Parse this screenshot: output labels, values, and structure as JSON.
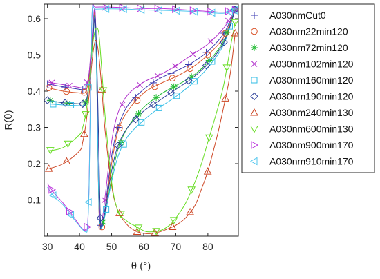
{
  "chart_data": {
    "type": "line",
    "xlabel": "θ (°)",
    "ylabel": "R(θ)",
    "xlim": [
      29,
      89.5
    ],
    "ylim": [
      0,
      0.64
    ],
    "xticks": [
      "30",
      "40",
      "50",
      "60",
      "70",
      "80"
    ],
    "yticks": [
      "0.1",
      "0.2",
      "0.3",
      "0.4",
      "0.5",
      "0.6"
    ],
    "grid": false,
    "legend": "right",
    "series": [
      {
        "name": "A030nmCut0",
        "color": "#3a3ab0",
        "marker": "plus",
        "x": [
          30,
          35,
          40,
          41,
          42,
          43,
          44,
          45,
          46,
          46.5,
          47,
          48,
          50,
          52,
          55,
          60,
          65,
          70,
          75,
          80,
          85,
          88.5
        ],
        "y": [
          0.42,
          0.412,
          0.405,
          0.404,
          0.41,
          0.45,
          0.55,
          0.598,
          0.1,
          0.03,
          0.025,
          0.08,
          0.22,
          0.3,
          0.36,
          0.405,
          0.435,
          0.455,
          0.478,
          0.51,
          0.56,
          0.625
        ]
      },
      {
        "name": "A030nm22min120",
        "color": "#d9552b",
        "marker": "circle",
        "x": [
          30,
          35,
          40,
          41,
          42,
          43,
          44,
          45,
          46,
          46.5,
          47,
          48,
          50,
          52,
          55,
          60,
          65,
          70,
          75,
          80,
          85,
          88.5
        ],
        "y": [
          0.41,
          0.4,
          0.395,
          0.394,
          0.4,
          0.44,
          0.54,
          0.59,
          0.09,
          0.03,
          0.025,
          0.07,
          0.2,
          0.29,
          0.345,
          0.395,
          0.42,
          0.44,
          0.465,
          0.5,
          0.55,
          0.625
        ]
      },
      {
        "name": "A030nm72min120",
        "color": "#22bb33",
        "marker": "asterisk",
        "x": [
          30,
          35,
          40,
          41,
          42,
          43,
          44,
          45,
          46,
          46.5,
          47,
          48,
          50,
          52,
          55,
          60,
          65,
          70,
          75,
          80,
          85,
          88.5
        ],
        "y": [
          0.375,
          0.368,
          0.365,
          0.365,
          0.37,
          0.42,
          0.53,
          0.585,
          0.11,
          0.03,
          0.025,
          0.06,
          0.16,
          0.24,
          0.3,
          0.355,
          0.39,
          0.415,
          0.44,
          0.48,
          0.54,
          0.625
        ]
      },
      {
        "name": "A030nm102min120",
        "color": "#b233cc",
        "marker": "x",
        "x": [
          30,
          35,
          40,
          41,
          42,
          43,
          44,
          45,
          46,
          46.5,
          47,
          48,
          50,
          52,
          55,
          60,
          65,
          70,
          75,
          80,
          85,
          88.5
        ],
        "y": [
          0.425,
          0.418,
          0.41,
          0.408,
          0.41,
          0.45,
          0.56,
          0.6,
          0.13,
          0.04,
          0.04,
          0.11,
          0.26,
          0.34,
          0.39,
          0.425,
          0.445,
          0.47,
          0.5,
          0.53,
          0.575,
          0.625
        ]
      },
      {
        "name": "A030nm160min120",
        "color": "#33bde6",
        "marker": "square",
        "x": [
          30,
          35,
          40,
          41,
          42,
          43,
          44,
          45,
          46,
          46.5,
          47,
          48,
          50,
          52,
          55,
          60,
          65,
          70,
          75,
          80,
          85,
          88.5
        ],
        "y": [
          0.365,
          0.362,
          0.36,
          0.36,
          0.37,
          0.42,
          0.52,
          0.58,
          0.1,
          0.03,
          0.025,
          0.06,
          0.15,
          0.22,
          0.275,
          0.32,
          0.355,
          0.385,
          0.42,
          0.465,
          0.53,
          0.625
        ]
      },
      {
        "name": "A030nm190min120",
        "color": "#2a3d99",
        "marker": "diamond",
        "x": [
          30,
          35,
          40,
          41,
          42,
          43,
          44,
          45,
          46,
          46.5,
          47,
          48,
          50,
          52,
          55,
          60,
          65,
          70,
          75,
          80,
          85,
          88.5
        ],
        "y": [
          0.375,
          0.368,
          0.365,
          0.365,
          0.37,
          0.42,
          0.52,
          0.59,
          0.25,
          0.05,
          0.03,
          0.07,
          0.18,
          0.25,
          0.3,
          0.345,
          0.375,
          0.405,
          0.435,
          0.475,
          0.535,
          0.625
        ]
      },
      {
        "name": "A030nm240min130",
        "color": "#cc4422",
        "marker": "triangle-up",
        "x": [
          30,
          35,
          40,
          41,
          42,
          43,
          44,
          45,
          46,
          47,
          48,
          50,
          52,
          55,
          58,
          60,
          62,
          65,
          68,
          70,
          73,
          76,
          78,
          80,
          83,
          85,
          87,
          88.5
        ],
        "y": [
          0.185,
          0.2,
          0.235,
          0.26,
          0.31,
          0.39,
          0.49,
          0.54,
          0.5,
          0.4,
          0.29,
          0.14,
          0.07,
          0.03,
          0.012,
          0.008,
          0.007,
          0.012,
          0.022,
          0.03,
          0.05,
          0.085,
          0.13,
          0.18,
          0.28,
          0.36,
          0.45,
          0.56
        ]
      },
      {
        "name": "A030nm600min130",
        "color": "#66dd22",
        "marker": "triangle-down",
        "x": [
          30,
          35,
          40,
          41,
          42,
          43,
          44,
          45,
          46,
          47,
          48,
          50,
          52,
          55,
          57,
          60,
          62,
          65,
          68,
          70,
          73,
          76,
          78,
          80,
          83,
          85,
          87,
          88.5
        ],
        "y": [
          0.235,
          0.245,
          0.28,
          0.3,
          0.34,
          0.42,
          0.52,
          0.57,
          0.56,
          0.45,
          0.33,
          0.15,
          0.07,
          0.04,
          0.03,
          0.015,
          0.012,
          0.015,
          0.03,
          0.05,
          0.09,
          0.15,
          0.2,
          0.26,
          0.35,
          0.42,
          0.52,
          0.59
        ]
      },
      {
        "name": "A030nm900min170",
        "color": "#bb33dd",
        "marker": "triangle-right",
        "x": [
          30,
          32,
          35,
          38,
          40,
          41,
          42,
          42.5,
          43,
          43.5,
          44,
          45,
          50,
          55,
          60,
          65,
          70,
          75,
          80,
          85,
          88.5
        ],
        "y": [
          0.145,
          0.12,
          0.09,
          0.055,
          0.03,
          0.02,
          0.015,
          0.03,
          0.15,
          0.45,
          0.628,
          0.632,
          0.632,
          0.63,
          0.628,
          0.628,
          0.626,
          0.623,
          0.62,
          0.618,
          0.625
        ]
      },
      {
        "name": "A030nm910min170",
        "color": "#4fc6ee",
        "marker": "triangle-left",
        "x": [
          30,
          32,
          35,
          38,
          40,
          41,
          42,
          42.5,
          43,
          43.5,
          44,
          45,
          50,
          55,
          60,
          65,
          70,
          75,
          80,
          85,
          88.5
        ],
        "y": [
          0.135,
          0.11,
          0.085,
          0.05,
          0.028,
          0.018,
          0.012,
          0.025,
          0.14,
          0.43,
          0.624,
          0.626,
          0.627,
          0.626,
          0.624,
          0.623,
          0.622,
          0.62,
          0.617,
          0.615,
          0.622
        ]
      }
    ]
  }
}
